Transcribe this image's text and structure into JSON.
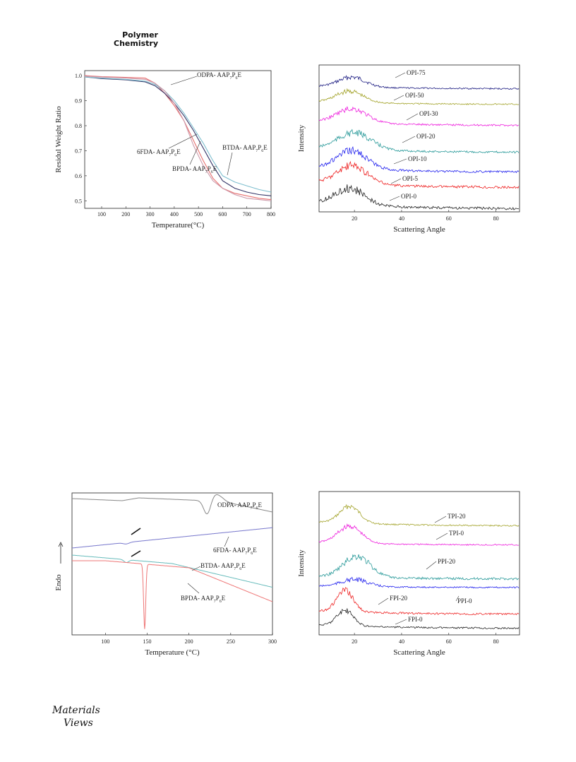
{
  "header": {
    "journal_line1": "Polymer",
    "journal_line2": "Chemistry"
  },
  "footer": {
    "logo_line1": "Materials",
    "logo_line2": "Views"
  },
  "chart_data": [
    {
      "id": "tga",
      "type": "line",
      "xlabel": "Temperature(°C)",
      "ylabel": "Residul Weight Ratio",
      "xlim": [
        30,
        800
      ],
      "ylim": [
        0.47,
        1.02
      ],
      "xticks": [
        100,
        200,
        300,
        400,
        500,
        600,
        700,
        800
      ],
      "yticks": [
        0.5,
        0.6,
        0.7,
        0.8,
        0.9,
        1.0
      ],
      "ytick_labels": [
        "0.5",
        "0.6",
        "0.7",
        "0.8",
        "0.9",
        "1.0"
      ],
      "series": [
        {
          "name": "ODPA- AAP7P6E",
          "color": "#e8706f",
          "x": [
            30,
            100,
            200,
            280,
            320,
            360,
            400,
            440,
            480,
            520,
            560,
            600,
            650,
            700,
            750,
            800
          ],
          "y": [
            1.0,
            0.996,
            0.993,
            0.99,
            0.97,
            0.93,
            0.88,
            0.82,
            0.74,
            0.66,
            0.59,
            0.55,
            0.53,
            0.52,
            0.51,
            0.505
          ]
        },
        {
          "name": "6FDA- AAP7P6E",
          "color": "#333366",
          "x": [
            30,
            100,
            200,
            280,
            320,
            360,
            400,
            440,
            480,
            520,
            560,
            600,
            650,
            700,
            750,
            800
          ],
          "y": [
            0.995,
            0.988,
            0.983,
            0.975,
            0.96,
            0.93,
            0.89,
            0.84,
            0.78,
            0.71,
            0.64,
            0.58,
            0.55,
            0.535,
            0.525,
            0.52
          ]
        },
        {
          "name": "BTDA- AAP7P6E",
          "color": "#7fbfcf",
          "x": [
            30,
            100,
            200,
            280,
            320,
            360,
            400,
            440,
            480,
            520,
            560,
            600,
            650,
            700,
            750,
            800
          ],
          "y": [
            0.995,
            0.99,
            0.985,
            0.978,
            0.965,
            0.94,
            0.9,
            0.85,
            0.79,
            0.73,
            0.66,
            0.6,
            0.575,
            0.56,
            0.545,
            0.535
          ]
        },
        {
          "name": "BPDA- AAP7P6E",
          "color": "#cc99aa",
          "x": [
            30,
            100,
            200,
            280,
            320,
            360,
            400,
            440,
            480,
            520,
            560,
            600,
            650,
            700,
            750,
            800
          ],
          "y": [
            0.998,
            0.994,
            0.99,
            0.985,
            0.97,
            0.94,
            0.89,
            0.82,
            0.72,
            0.64,
            0.58,
            0.55,
            0.525,
            0.51,
            0.505,
            0.5
          ]
        }
      ],
      "annotations": [
        {
          "base": "ODPA- AAP",
          "s1": "7",
          "mid": "P",
          "s2": "6",
          "end": "E"
        },
        {
          "base": "6FDA- AAP",
          "s1": "7",
          "mid": "P",
          "s2": "6",
          "end": "E"
        },
        {
          "base": "BPDA- AAP",
          "s1": "7",
          "mid": "P",
          "s2": "6",
          "end": "E"
        },
        {
          "base": "BTDA- AAP",
          "s1": "7",
          "mid": "P",
          "s2": "6",
          "end": "E"
        }
      ]
    },
    {
      "id": "xrd_opi",
      "type": "line",
      "xlabel": "Scattering Angle",
      "ylabel": "Intensity",
      "xlim": [
        5,
        90
      ],
      "xticks": [
        20,
        40,
        60,
        80
      ],
      "series": [
        {
          "name": "OPI-75",
          "color": "#1a1a80"
        },
        {
          "name": "OPI-50",
          "color": "#a3a32a"
        },
        {
          "name": "OPI-30",
          "color": "#ee22dd"
        },
        {
          "name": "OPI-20",
          "color": "#2a9a9a"
        },
        {
          "name": "OPI-10",
          "color": "#2222ee"
        },
        {
          "name": "OPI-5",
          "color": "#ee2222"
        },
        {
          "name": "OPI-0",
          "color": "#222222"
        }
      ]
    },
    {
      "id": "dsc",
      "type": "line",
      "xlabel": "Temperature (°C)",
      "ylabel": "Endo",
      "xlim": [
        60,
        300
      ],
      "xticks": [
        100,
        150,
        200,
        250,
        300
      ],
      "series": [
        {
          "name": "ODPA- AAP7P6E",
          "color": "#888888"
        },
        {
          "name": "6FDA- AAP7P6E",
          "color": "#7777cc"
        },
        {
          "name": "BTDA- AAP7P6E",
          "color": "#66bbbb"
        },
        {
          "name": "BPDA- AAP7P6E",
          "color": "#ee7777"
        }
      ],
      "annotations": [
        {
          "base": "ODPA- AAP",
          "s1": "7",
          "mid": "P",
          "s2": "6",
          "end": "E"
        },
        {
          "base": "6FDA- AAP",
          "s1": "7",
          "mid": "P",
          "s2": "6",
          "end": "E"
        },
        {
          "base": "BTDA- AAP",
          "s1": "7",
          "mid": "P",
          "s2": "6",
          "end": "E"
        },
        {
          "base": "BPDA- AAP",
          "s1": "7",
          "mid": "P",
          "s2": "6",
          "end": "E"
        }
      ]
    },
    {
      "id": "xrd_tpi",
      "type": "line",
      "xlabel": "Scattering Angle",
      "ylabel": "Intensity",
      "xlim": [
        5,
        90
      ],
      "xticks": [
        20,
        40,
        60,
        80
      ],
      "series": [
        {
          "name": "TPI-20",
          "color": "#a3a32a"
        },
        {
          "name": "TPI-0",
          "color": "#ee22dd"
        },
        {
          "name": "PPI-20",
          "color": "#2a9a9a"
        },
        {
          "name": "PPI-0",
          "color": "#2222ee"
        },
        {
          "name": "FPI-20",
          "color": "#ee2222"
        },
        {
          "name": "FPI-0",
          "color": "#222222"
        }
      ]
    }
  ]
}
